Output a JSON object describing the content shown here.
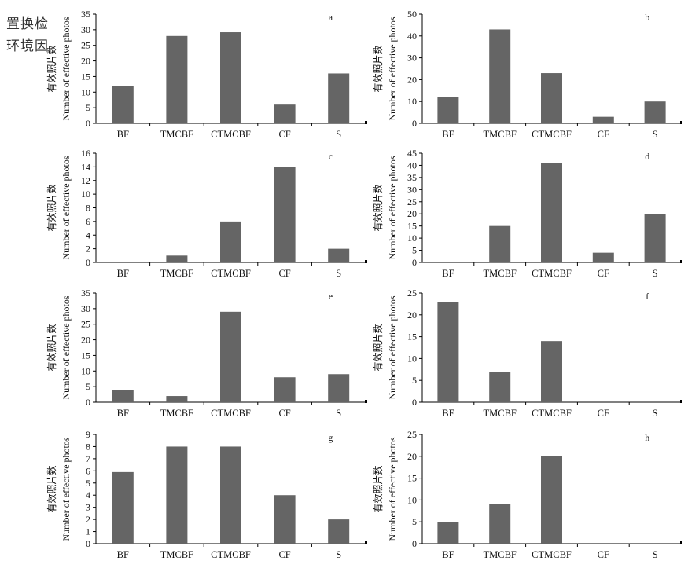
{
  "corner_labels": [
    "置换检",
    "环境因"
  ],
  "chart_data": [
    {
      "type": "bar",
      "panel_label": "a",
      "categories": [
        "BF",
        "TMCBF",
        "CTMCBF",
        "CF",
        "S"
      ],
      "values": [
        12,
        28,
        29.2,
        6,
        16
      ],
      "ylim": [
        0,
        35
      ],
      "yticks": [
        0,
        5,
        10,
        15,
        20,
        25,
        30,
        35
      ],
      "ylabel_cn": "有效照片数",
      "ylabel_en": "Number of effective photos",
      "grid": false,
      "legend": "none",
      "bar_color": "#656565"
    },
    {
      "type": "bar",
      "panel_label": "b",
      "categories": [
        "BF",
        "TMCBF",
        "CTMCBF",
        "CF",
        "S"
      ],
      "values": [
        12,
        43,
        23,
        3,
        10
      ],
      "ylim": [
        0,
        50
      ],
      "yticks": [
        0,
        10,
        20,
        30,
        40,
        50
      ],
      "ylabel_cn": "有效照片数",
      "ylabel_en": "Number of effective photos",
      "grid": false,
      "legend": "none",
      "bar_color": "#656565"
    },
    {
      "type": "bar",
      "panel_label": "c",
      "categories": [
        "BF",
        "TMCBF",
        "CTMCBF",
        "CF",
        "S"
      ],
      "values": [
        0,
        1,
        6,
        14,
        2
      ],
      "ylim": [
        0,
        16
      ],
      "yticks": [
        0,
        2,
        4,
        6,
        8,
        10,
        12,
        14,
        16
      ],
      "ylabel_cn": "有效照片数",
      "ylabel_en": "Number of effective photos",
      "grid": false,
      "legend": "none",
      "bar_color": "#656565"
    },
    {
      "type": "bar",
      "panel_label": "d",
      "categories": [
        "BF",
        "TMCBF",
        "CTMCBF",
        "CF",
        "S"
      ],
      "values": [
        0,
        15,
        41,
        4,
        20
      ],
      "ylim": [
        0,
        45
      ],
      "yticks": [
        0,
        5,
        10,
        15,
        20,
        25,
        30,
        35,
        40,
        45
      ],
      "ylabel_cn": "有效照片数",
      "ylabel_en": "Number of effective photos",
      "grid": false,
      "legend": "none",
      "bar_color": "#656565"
    },
    {
      "type": "bar",
      "panel_label": "e",
      "categories": [
        "BF",
        "TMCBF",
        "CTMCBF",
        "CF",
        "S"
      ],
      "values": [
        4,
        2,
        29,
        8,
        9
      ],
      "ylim": [
        0,
        35
      ],
      "yticks": [
        0,
        5,
        10,
        15,
        20,
        25,
        30,
        35
      ],
      "ylabel_cn": "有效照片数",
      "ylabel_en": "Number of effective photos",
      "grid": false,
      "legend": "none",
      "bar_color": "#656565"
    },
    {
      "type": "bar",
      "panel_label": "f",
      "categories": [
        "BF",
        "TMCBF",
        "CTMCBF",
        "CF",
        "S"
      ],
      "values": [
        23,
        7,
        14,
        0,
        0
      ],
      "ylim": [
        0,
        25
      ],
      "yticks": [
        0,
        5,
        10,
        15,
        20,
        25
      ],
      "ylabel_cn": "有效照片数",
      "ylabel_en": "Number of effective photos",
      "grid": false,
      "legend": "none",
      "bar_color": "#656565"
    },
    {
      "type": "bar",
      "panel_label": "g",
      "categories": [
        "BF",
        "TMCBF",
        "CTMCBF",
        "CF",
        "S"
      ],
      "values": [
        5.9,
        8,
        8,
        4,
        2
      ],
      "ylim": [
        0,
        9
      ],
      "yticks": [
        0,
        1,
        2,
        3,
        4,
        5,
        6,
        7,
        8,
        9
      ],
      "ylabel_cn": "有效照片数",
      "ylabel_en": "Number of effective photos",
      "grid": false,
      "legend": "none",
      "bar_color": "#656565"
    },
    {
      "type": "bar",
      "panel_label": "h",
      "categories": [
        "BF",
        "TMCBF",
        "CTMCBF",
        "CF",
        "S"
      ],
      "values": [
        5,
        9,
        20,
        0,
        0
      ],
      "ylim": [
        0,
        25
      ],
      "yticks": [
        0,
        5,
        10,
        15,
        20,
        25
      ],
      "ylabel_cn": "有效照片数",
      "ylabel_en": "Number of effective photos",
      "grid": false,
      "legend": "none",
      "bar_color": "#656565"
    }
  ]
}
